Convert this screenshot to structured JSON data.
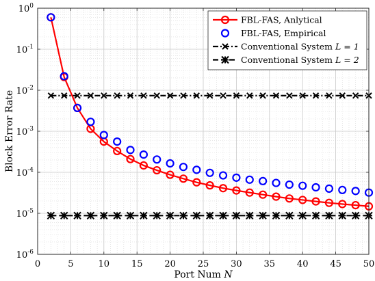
{
  "chart_data": {
    "type": "line",
    "xlabel": "Port Num",
    "xlabel_var": "N",
    "ylabel": "Block Error Rate",
    "xlim": [
      0,
      50
    ],
    "ylim": [
      1e-06,
      1
    ],
    "yscale": "log",
    "xticks": [
      0,
      5,
      10,
      15,
      20,
      25,
      30,
      35,
      40,
      45,
      50
    ],
    "yticks": [
      {
        "exp": -6,
        "label_base": "10",
        "label_exp": "-6"
      },
      {
        "exp": -5,
        "label_base": "10",
        "label_exp": "-5"
      },
      {
        "exp": -4,
        "label_base": "10",
        "label_exp": "-4"
      },
      {
        "exp": -3,
        "label_base": "10",
        "label_exp": "-3"
      },
      {
        "exp": -2,
        "label_base": "10",
        "label_exp": "-2"
      },
      {
        "exp": -1,
        "label_base": "10",
        "label_exp": "-1"
      },
      {
        "exp": 0,
        "label_base": "10",
        "label_exp": "0"
      }
    ],
    "grid": true,
    "minor_grid": true,
    "legend_position": "top-right",
    "x": [
      2,
      4,
      6,
      8,
      10,
      12,
      14,
      16,
      18,
      20,
      22,
      24,
      26,
      28,
      30,
      32,
      34,
      36,
      38,
      40,
      42,
      44,
      46,
      48,
      50
    ],
    "series": [
      {
        "name": "FBL-FAS, Anlytical",
        "color": "#ff0000",
        "line": "solid",
        "marker": "circle",
        "values": [
          0.6,
          0.021,
          0.0037,
          0.00115,
          0.00056,
          0.00033,
          0.00021,
          0.000147,
          0.000112,
          8.7e-05,
          7e-05,
          5.7e-05,
          4.8e-05,
          4.1e-05,
          3.6e-05,
          3.2e-05,
          2.85e-05,
          2.55e-05,
          2.3e-05,
          2.12e-05,
          1.95e-05,
          1.8e-05,
          1.68e-05,
          1.58e-05,
          1.48e-05
        ]
      },
      {
        "name": "FBL-FAS, Empirical",
        "color": "#0000ff",
        "line": "none",
        "marker": "circle",
        "values": [
          0.6,
          0.022,
          0.0037,
          0.0017,
          0.00081,
          0.00056,
          0.00035,
          0.00027,
          0.000205,
          0.000165,
          0.000135,
          0.000115,
          9.7e-05,
          8.4e-05,
          7.4e-05,
          6.6e-05,
          6.1e-05,
          5.5e-05,
          5e-05,
          4.7e-05,
          4.3e-05,
          4e-05,
          3.7e-05,
          3.5e-05,
          3.2e-05
        ]
      },
      {
        "name": "Conventional System",
        "name_var": "L = 1",
        "color": "#000000",
        "line": "dash-dot",
        "marker": "x",
        "values": [
          0.0074,
          0.0074,
          0.0074,
          0.0074,
          0.0074,
          0.0074,
          0.0074,
          0.0074,
          0.0074,
          0.0074,
          0.0074,
          0.0074,
          0.0074,
          0.0074,
          0.0074,
          0.0074,
          0.0074,
          0.0074,
          0.0074,
          0.0074,
          0.0074,
          0.0074,
          0.0074,
          0.0074,
          0.0074
        ]
      },
      {
        "name": "Conventional System",
        "name_var": "L = 2",
        "color": "#000000",
        "line": "dashed",
        "marker": "asterisk",
        "values": [
          8.8e-06,
          8.8e-06,
          8.8e-06,
          8.8e-06,
          8.8e-06,
          8.8e-06,
          8.8e-06,
          8.8e-06,
          8.8e-06,
          8.8e-06,
          8.8e-06,
          8.8e-06,
          8.8e-06,
          8.8e-06,
          8.8e-06,
          8.8e-06,
          8.8e-06,
          8.8e-06,
          8.8e-06,
          8.8e-06,
          8.8e-06,
          8.8e-06,
          8.8e-06,
          8.8e-06,
          8.8e-06
        ]
      }
    ]
  }
}
